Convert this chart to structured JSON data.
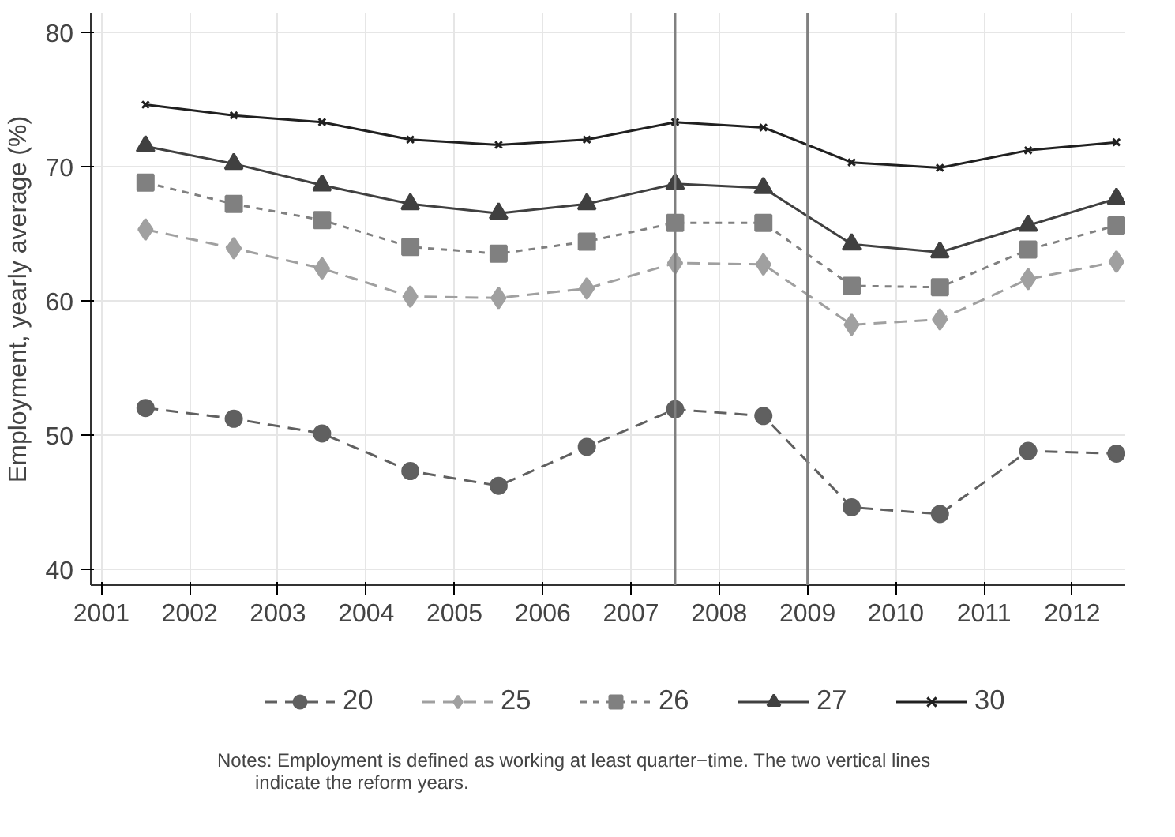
{
  "chart_data": {
    "type": "line",
    "ylabel": "Employment, yearly average (%)",
    "x": [
      2001.5,
      2002.5,
      2003.5,
      2004.5,
      2005.5,
      2006.5,
      2007.5,
      2008.5,
      2009.5,
      2010.5,
      2011.5,
      2012.5
    ],
    "series": [
      {
        "name": "20",
        "color": "#606060",
        "marker": "circle",
        "line_style": "dashed",
        "values": [
          52.0,
          51.2,
          50.1,
          47.3,
          46.2,
          49.1,
          51.9,
          51.4,
          44.6,
          44.1,
          48.8,
          48.6
        ]
      },
      {
        "name": "25",
        "color": "#a0a0a0",
        "marker": "diamond",
        "line_style": "dashed",
        "values": [
          65.3,
          63.9,
          62.4,
          60.3,
          60.2,
          60.9,
          62.8,
          62.7,
          58.2,
          58.6,
          61.6,
          62.9
        ]
      },
      {
        "name": "26",
        "color": "#808080",
        "marker": "square",
        "line_style": "dotted",
        "values": [
          68.8,
          67.2,
          66.0,
          64.0,
          63.5,
          64.4,
          65.8,
          65.8,
          61.1,
          61.0,
          63.8,
          65.6
        ]
      },
      {
        "name": "27",
        "color": "#404040",
        "marker": "triangle",
        "line_style": "solid",
        "values": [
          71.5,
          70.2,
          68.6,
          67.2,
          66.5,
          67.2,
          68.7,
          68.4,
          64.2,
          63.6,
          65.6,
          67.6
        ]
      },
      {
        "name": "30",
        "color": "#202020",
        "marker": "cross",
        "line_style": "solid",
        "values": [
          74.6,
          73.8,
          73.3,
          72.0,
          71.6,
          72.0,
          73.3,
          72.9,
          70.3,
          69.9,
          71.2,
          71.8
        ]
      }
    ],
    "xlim": [
      2000.88,
      2012.6
    ],
    "xticks": [
      2001,
      2002,
      2003,
      2004,
      2005,
      2006,
      2007,
      2008,
      2009,
      2010,
      2011,
      2012
    ],
    "ylim": [
      38.8,
      81.4
    ],
    "yticks": [
      40,
      50,
      60,
      70,
      80
    ],
    "ref_lines": [
      {
        "axis": "x",
        "value": 2007.5,
        "label": null,
        "color": "#808080"
      },
      {
        "axis": "x",
        "value": 2009,
        "label": null,
        "color": "#808080"
      }
    ],
    "grid": true,
    "legend": "bottom",
    "annotations": [
      "Notes: Employment is defined as working at least quarter−time. The two vertical lines indicate the reform years."
    ]
  }
}
